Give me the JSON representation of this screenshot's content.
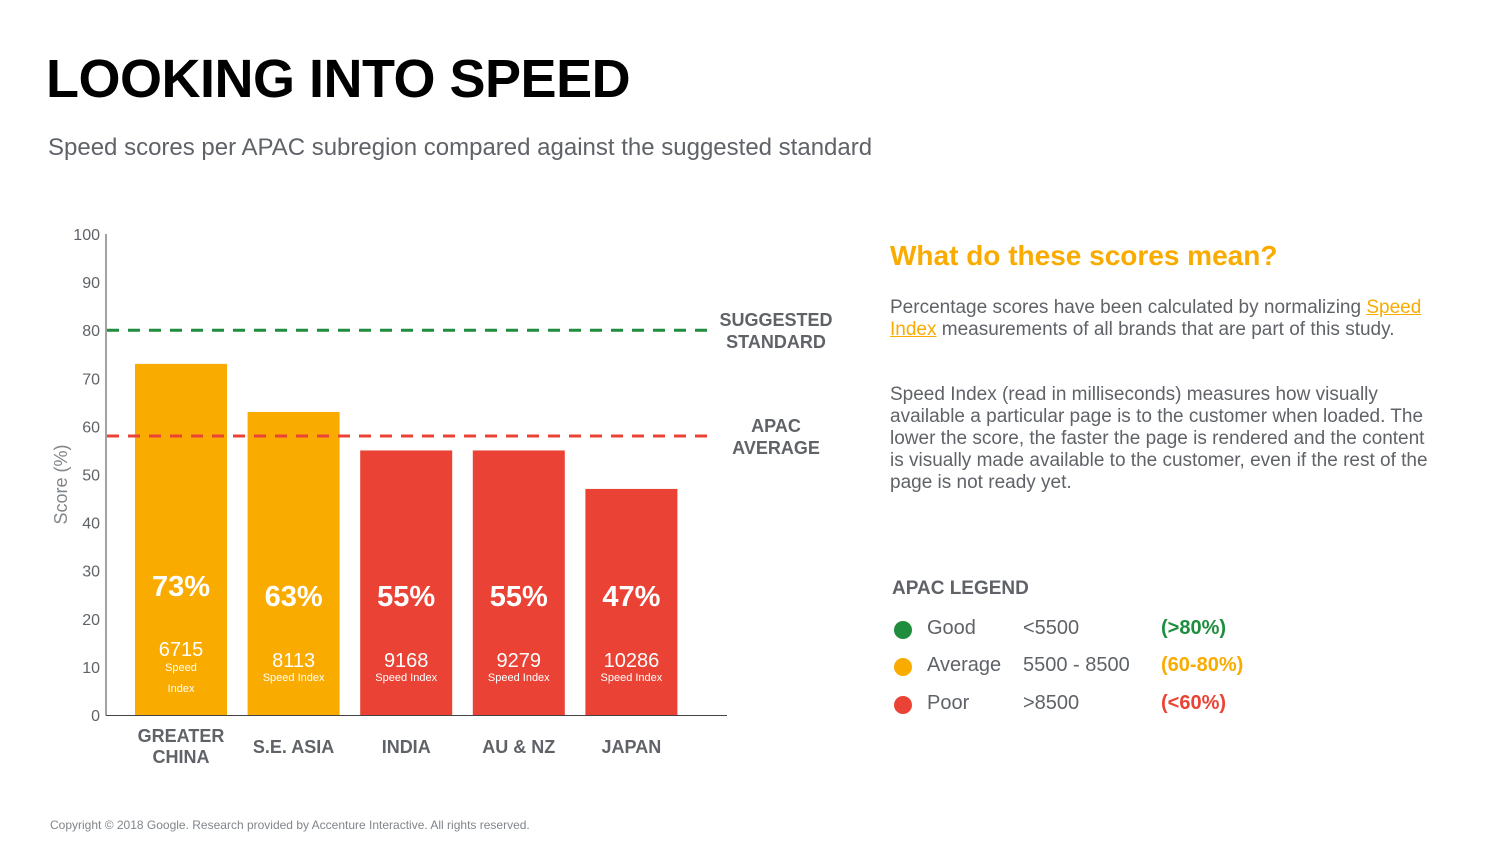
{
  "page": {
    "title": "LOOKING INTO SPEED",
    "subtitle": "Speed scores per APAC subregion compared against the suggested standard",
    "footer": "Copyright © 2018 Google. Research provided by Accenture Interactive. All rights reserved."
  },
  "colors": {
    "good": "#1e8e3e",
    "average": "#f9ab00",
    "poor": "#ea4335",
    "text_gray": "#5f6368"
  },
  "chart_data": {
    "type": "bar",
    "ylabel": "Score (%)",
    "ylim": [
      0,
      100
    ],
    "yticks": [
      0,
      10,
      20,
      30,
      40,
      50,
      60,
      70,
      80,
      90,
      100
    ],
    "categories": [
      {
        "lines": [
          "GREATER",
          "CHINA"
        ]
      },
      {
        "lines": [
          "S.E. ASIA"
        ]
      },
      {
        "lines": [
          "INDIA"
        ]
      },
      {
        "lines": [
          "AU & NZ"
        ]
      },
      {
        "lines": [
          "JAPAN"
        ]
      }
    ],
    "values": [
      73,
      63,
      55,
      55,
      47
    ],
    "value_labels": [
      "73%",
      "63%",
      "55%",
      "55%",
      "47%"
    ],
    "speed_index": [
      "6715",
      "8113",
      "9168",
      "9279",
      "10286"
    ],
    "speed_index_label": "Speed Index",
    "bar_status": [
      "average",
      "average",
      "poor",
      "poor",
      "poor"
    ],
    "reference_lines": [
      {
        "name": "suggested-standard",
        "value": 80,
        "lines": [
          "SUGGESTED",
          "STANDARD"
        ],
        "status": "good"
      },
      {
        "name": "apac-average",
        "value": 58,
        "lines": [
          "APAC",
          "AVERAGE"
        ],
        "status": "poor"
      }
    ],
    "grid": false
  },
  "info": {
    "title": "What do these scores mean?",
    "p1_before": "Percentage scores have been calculated by normalizing ",
    "p1_link": "Speed Index",
    "p1_after": " measurements of all brands that are part of this study.",
    "p2": "Speed Index (read in milliseconds) measures how visually available a particular page is to the customer when loaded. The lower the score, the faster the page is rendered and the content is visually made available to the customer, even if the rest of the page is not ready yet."
  },
  "legend": {
    "title": "APAC LEGEND",
    "items": [
      {
        "name": "Good",
        "range": "<5500",
        "pct": "(>80%)",
        "color": "#1e8e3e"
      },
      {
        "name": "Average",
        "range": "5500 - 8500",
        "pct": "(60-80%)",
        "color": "#f9ab00"
      },
      {
        "name": "Poor",
        "range": ">8500",
        "pct": "(<60%)",
        "color": "#ea4335"
      }
    ]
  }
}
